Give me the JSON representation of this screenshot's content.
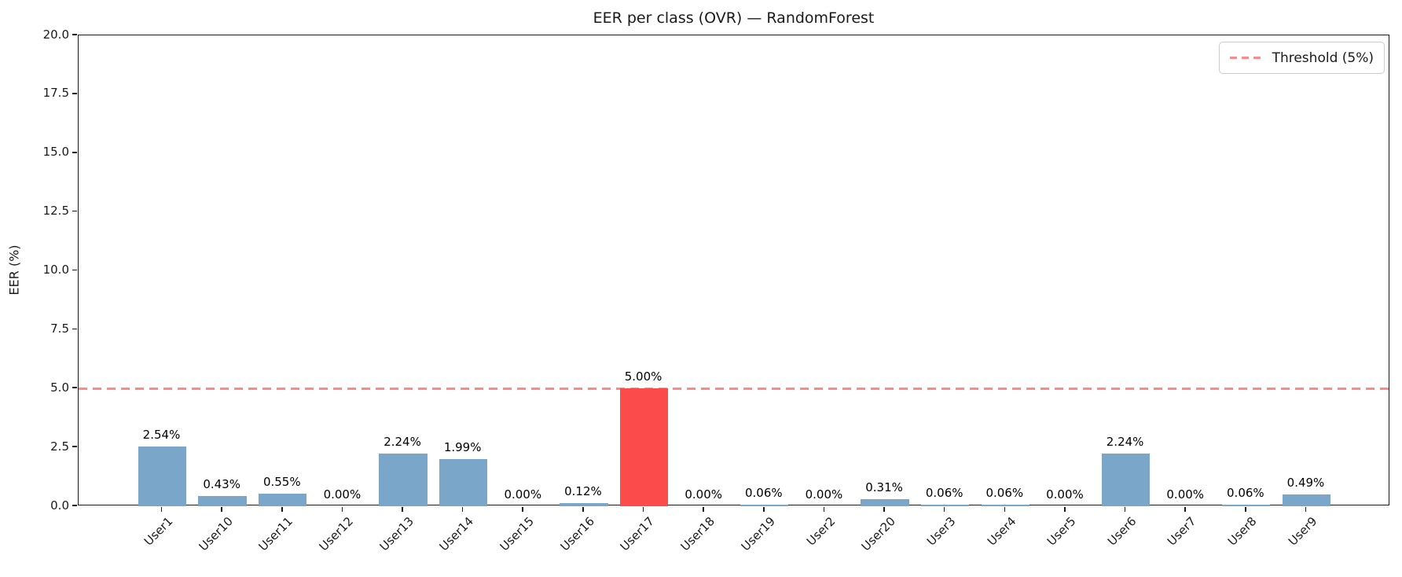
{
  "figure": {
    "title": "EER per class (OVR) — RandomForest"
  },
  "chart_data": {
    "type": "bar",
    "title": "EER per class (OVR) — RandomForest",
    "xlabel": "",
    "ylabel": "EER (%)",
    "ylim": [
      0,
      20
    ],
    "yticks": [
      0.0,
      2.5,
      5.0,
      7.5,
      10.0,
      12.5,
      15.0,
      17.5,
      20.0
    ],
    "ytick_labels": [
      "0.0",
      "2.5",
      "5.0",
      "7.5",
      "10.0",
      "12.5",
      "15.0",
      "17.5",
      "20.0"
    ],
    "categories": [
      "User1",
      "User10",
      "User11",
      "User12",
      "User13",
      "User14",
      "User15",
      "User16",
      "User17",
      "User18",
      "User19",
      "User2",
      "User20",
      "User3",
      "User4",
      "User5",
      "User6",
      "User7",
      "User8",
      "User9"
    ],
    "values": [
      2.54,
      0.43,
      0.55,
      0.0,
      2.24,
      1.99,
      0.0,
      0.12,
      5.0,
      0.0,
      0.06,
      0.0,
      0.31,
      0.06,
      0.06,
      0.0,
      2.24,
      0.0,
      0.06,
      0.49
    ],
    "bar_labels": [
      "2.54%",
      "0.43%",
      "0.55%",
      "0.00%",
      "2.24%",
      "1.99%",
      "0.00%",
      "0.12%",
      "5.00%",
      "0.00%",
      "0.06%",
      "0.00%",
      "0.31%",
      "0.06%",
      "0.06%",
      "0.00%",
      "2.24%",
      "0.00%",
      "0.06%",
      "0.49%"
    ],
    "bar_color": "#7aa6ca",
    "highlight_index": 8,
    "highlight_color": "#fc4b4b",
    "grid": false,
    "legend_position": "upper right",
    "threshold": {
      "value": 5,
      "label": "Threshold (5%)",
      "color": "#fb8a8a",
      "style": "dashed"
    }
  }
}
